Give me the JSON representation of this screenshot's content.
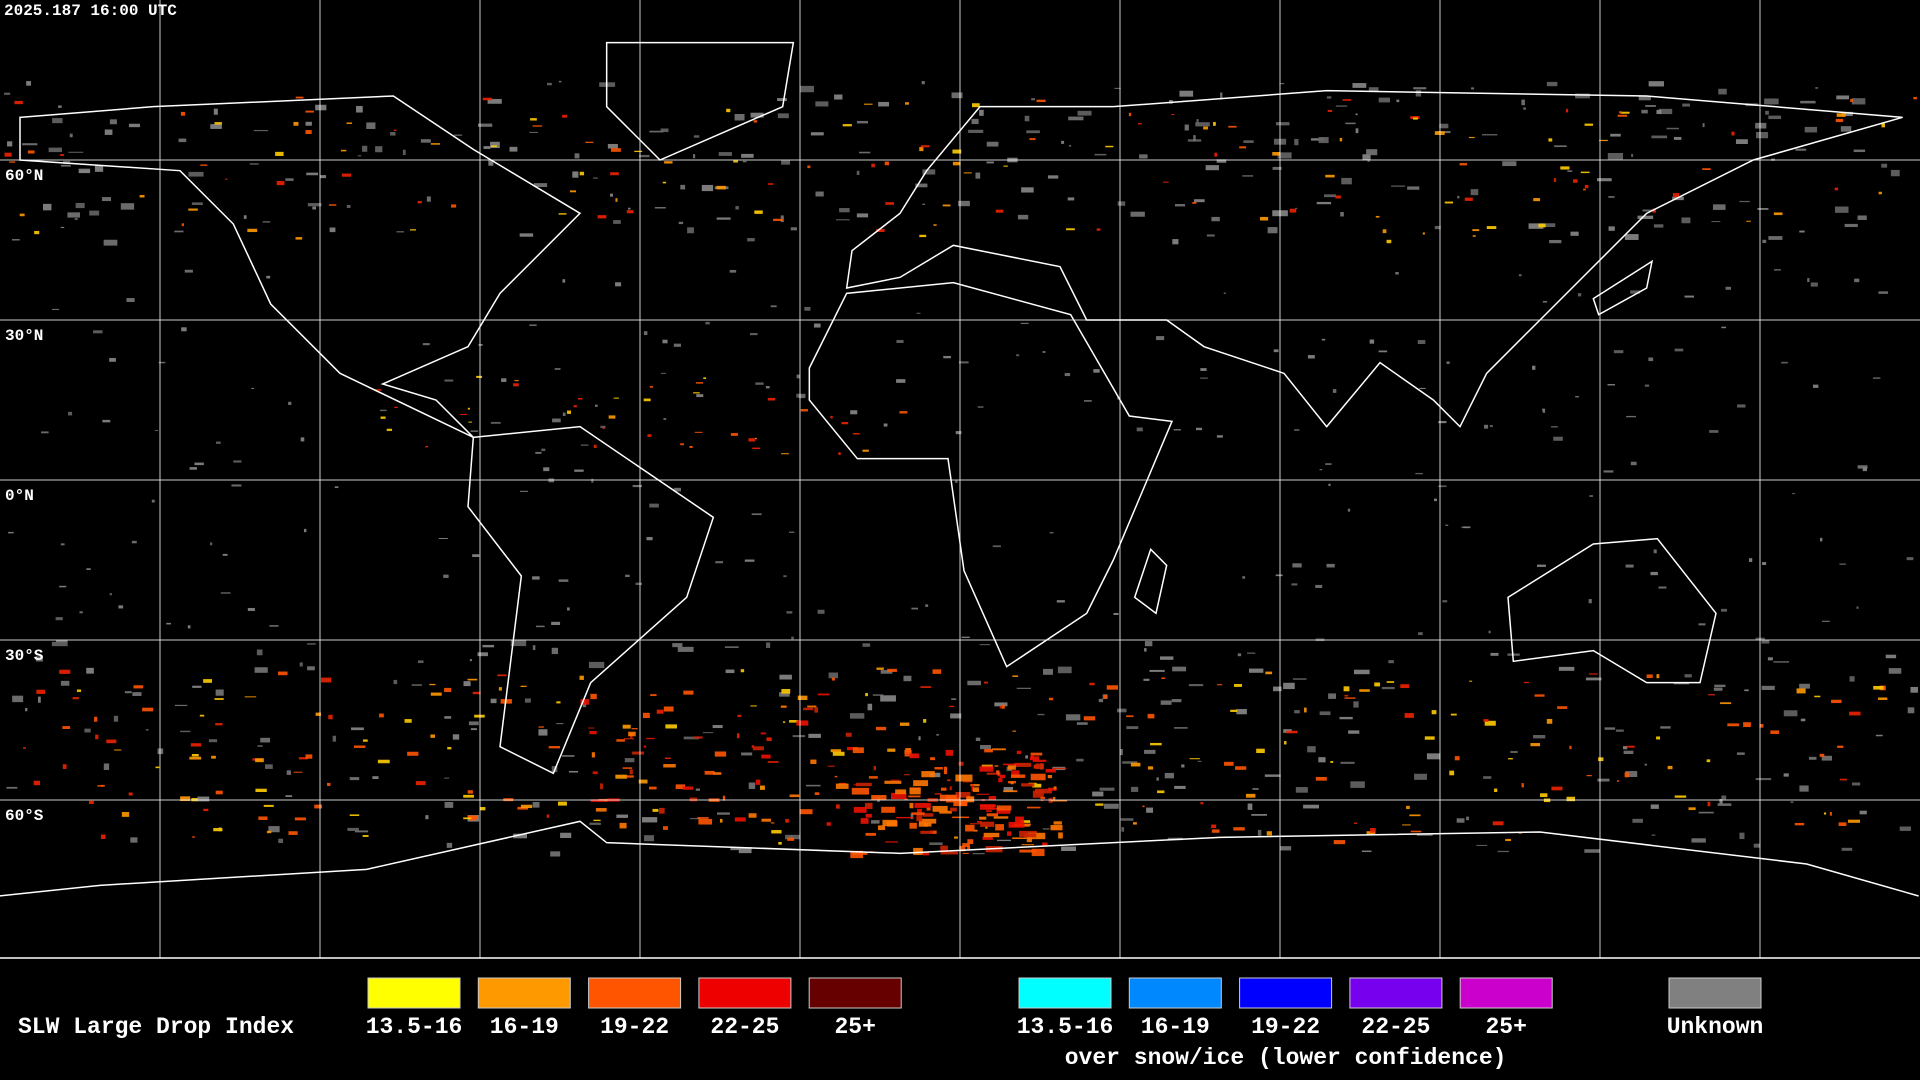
{
  "header": {
    "timestamp": "2025.187 16:00 UTC"
  },
  "map": {
    "latitude_labels": [
      "60°N",
      "30°N",
      "0°N",
      "30°S",
      "60°S"
    ]
  },
  "legend": {
    "title": "SLW Large Drop Index",
    "groups": [
      {
        "items": [
          {
            "label": "13.5-16",
            "color": "#ffff00"
          },
          {
            "label": "16-19",
            "color": "#ff9900"
          },
          {
            "label": "19-22",
            "color": "#ff5500"
          },
          {
            "label": "22-25",
            "color": "#ee0000"
          },
          {
            "label": "25+",
            "color": "#660000"
          }
        ]
      },
      {
        "items": [
          {
            "label": "13.5-16",
            "color": "#00ffff"
          },
          {
            "label": "16-19",
            "color": "#0088ff"
          },
          {
            "label": "19-22",
            "color": "#0000ff"
          },
          {
            "label": "22-25",
            "color": "#7700ee"
          },
          {
            "label": "25+",
            "color": "#cc00cc"
          }
        ],
        "caption": "over snow/ice (lower confidence)"
      },
      {
        "items": [
          {
            "label": "Unknown",
            "color": "#808080"
          }
        ]
      }
    ]
  }
}
